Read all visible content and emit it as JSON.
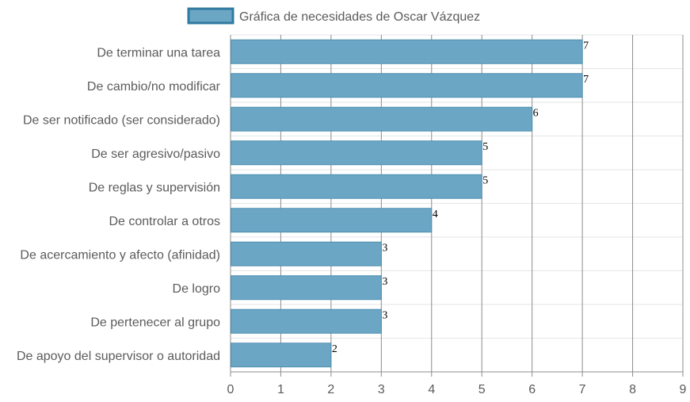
{
  "chart_data": {
    "type": "bar",
    "orientation": "horizontal",
    "categories": [
      "De terminar una tarea",
      "De cambio/no modificar",
      "De ser notificado (ser considerado)",
      "De ser agresivo/pasivo",
      "De reglas y supervisión",
      "De controlar a otros",
      "De acercamiento y afecto (afinidad)",
      "De logro",
      "De pertenecer al grupo",
      "De apoyo del supervisor o autoridad"
    ],
    "series": [
      {
        "name": "Gráfica de necesidades de Oscar Vázquez",
        "values": [
          7,
          7,
          6,
          5,
          5,
          4,
          3,
          3,
          3,
          2
        ]
      }
    ],
    "x_ticks": [
      "0",
      "1",
      "2",
      "3",
      "4",
      "5",
      "6",
      "7",
      "8",
      "9"
    ],
    "xlim": [
      0,
      9
    ],
    "grid": true,
    "legend_position": "top",
    "colors": {
      "bar_fill": "#6ba6c4",
      "bar_stroke": "#4e8fb0",
      "legend_stroke": "#2f79a0",
      "grid_vertical": "#8c8c8c",
      "grid_horizontal": "#e6e6e6"
    }
  }
}
